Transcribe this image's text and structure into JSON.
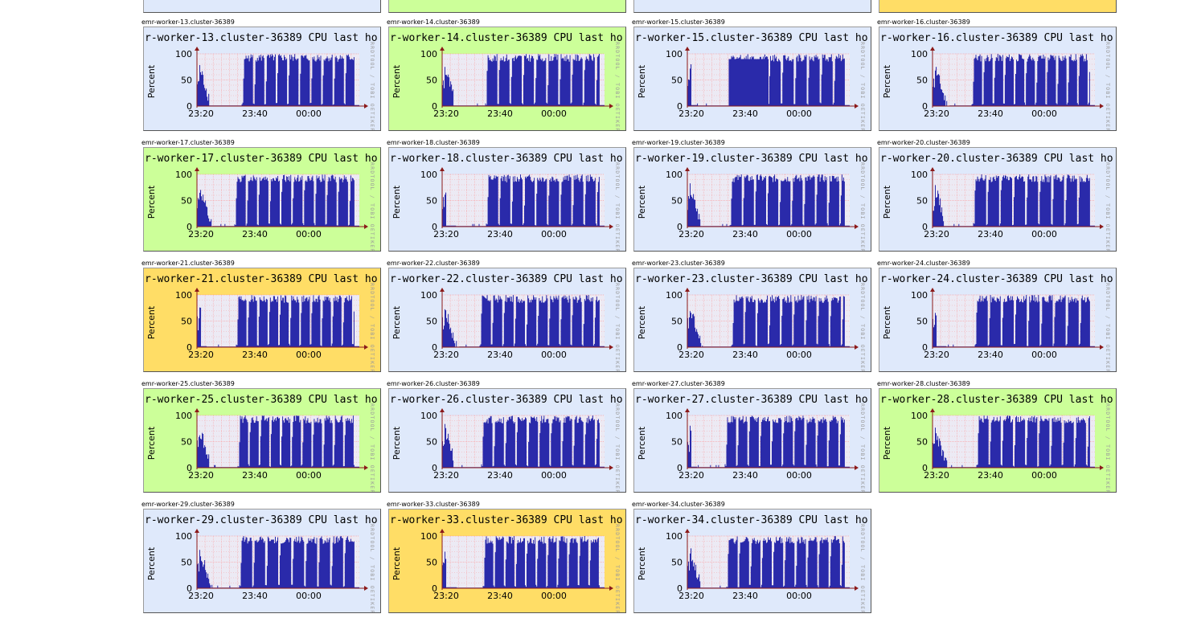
{
  "colors": {
    "green": "#ccff99",
    "blue": "#dfe9fb",
    "yellow": "#ffdd66",
    "plot_bg": "#eceaf4",
    "area": "#2a2aaa",
    "grid": "#ff8080",
    "axis": "#8b1a1a"
  },
  "top_stubs": [
    {
      "color": "blue"
    },
    {
      "color": "green"
    },
    {
      "color": "blue"
    },
    {
      "color": "yellow"
    }
  ],
  "graphs": [
    {
      "caption": "emr-worker-13.cluster-36389",
      "title": "r-worker-13.cluster-36389 CPU last ho",
      "color": "blue",
      "pattern": 1
    },
    {
      "caption": "emr-worker-14.cluster-36389",
      "title": "r-worker-14.cluster-36389 CPU last ho",
      "color": "green",
      "pattern": 2
    },
    {
      "caption": "emr-worker-15.cluster-36389",
      "title": "r-worker-15.cluster-36389 CPU last ho",
      "color": "blue",
      "pattern": 3
    },
    {
      "caption": "emr-worker-16.cluster-36389",
      "title": "r-worker-16.cluster-36389 CPU last ho",
      "color": "blue",
      "pattern": 4
    },
    {
      "caption": "emr-worker-17.cluster-36389",
      "title": "r-worker-17.cluster-36389 CPU last ho",
      "color": "green",
      "pattern": 5
    },
    {
      "caption": "emr-worker-18.cluster-36389",
      "title": "r-worker-18.cluster-36389 CPU last ho",
      "color": "blue",
      "pattern": 6
    },
    {
      "caption": "emr-worker-19.cluster-36389",
      "title": "r-worker-19.cluster-36389 CPU last ho",
      "color": "blue",
      "pattern": 7
    },
    {
      "caption": "emr-worker-20.cluster-36389",
      "title": "r-worker-20.cluster-36389 CPU last ho",
      "color": "blue",
      "pattern": 8
    },
    {
      "caption": "emr-worker-21.cluster-36389",
      "title": "r-worker-21.cluster-36389 CPU last ho",
      "color": "yellow",
      "pattern": 9
    },
    {
      "caption": "emr-worker-22.cluster-36389",
      "title": "r-worker-22.cluster-36389 CPU last ho",
      "color": "blue",
      "pattern": 10
    },
    {
      "caption": "emr-worker-23.cluster-36389",
      "title": "r-worker-23.cluster-36389 CPU last ho",
      "color": "blue",
      "pattern": 11
    },
    {
      "caption": "emr-worker-24.cluster-36389",
      "title": "r-worker-24.cluster-36389 CPU last ho",
      "color": "blue",
      "pattern": 12
    },
    {
      "caption": "emr-worker-25.cluster-36389",
      "title": "r-worker-25.cluster-36389 CPU last ho",
      "color": "green",
      "pattern": 13
    },
    {
      "caption": "emr-worker-26.cluster-36389",
      "title": "r-worker-26.cluster-36389 CPU last ho",
      "color": "blue",
      "pattern": 14
    },
    {
      "caption": "emr-worker-27.cluster-36389",
      "title": "r-worker-27.cluster-36389 CPU last ho",
      "color": "blue",
      "pattern": 15
    },
    {
      "caption": "emr-worker-28.cluster-36389",
      "title": "r-worker-28.cluster-36389 CPU last ho",
      "color": "green",
      "pattern": 16
    },
    {
      "caption": "emr-worker-29.cluster-36389",
      "title": "r-worker-29.cluster-36389 CPU last ho",
      "color": "blue",
      "pattern": 17
    },
    {
      "caption": "emr-worker-33.cluster-36389",
      "title": "r-worker-33.cluster-36389 CPU last ho",
      "color": "yellow",
      "pattern": 18
    },
    {
      "caption": "emr-worker-34.cluster-36389",
      "title": "r-worker-34.cluster-36389 CPU last ho",
      "color": "blue",
      "pattern": 19
    }
  ],
  "axis": {
    "ylabel": "Percent",
    "yticks": [
      "100",
      "50",
      "0"
    ],
    "xticks": [
      "23:20",
      "23:40",
      "00:00"
    ]
  },
  "watermark": "RRDTOOL / TOBI OETIKER"
}
